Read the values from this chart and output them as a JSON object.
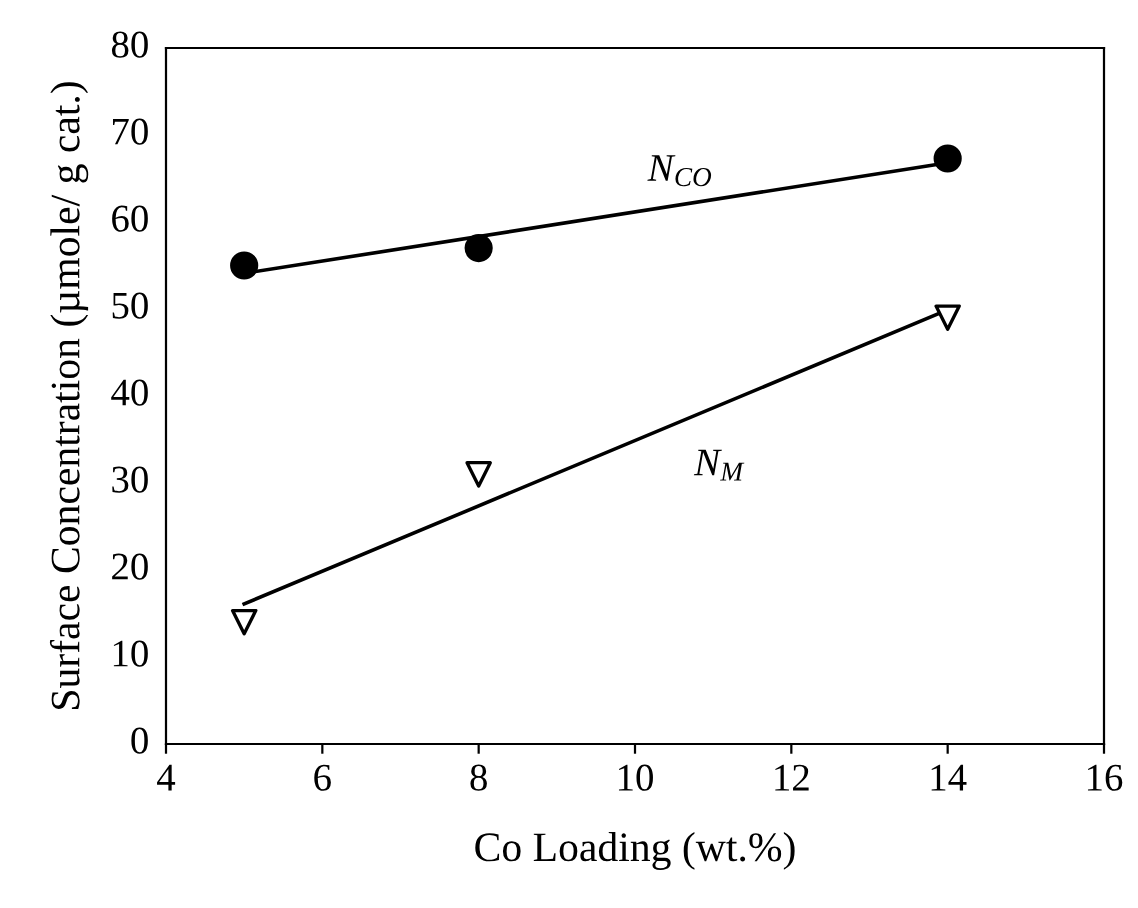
{
  "chart_data": {
    "type": "scatter",
    "xlabel": "Co Loading (wt.%)",
    "ylabel": "Surface Concentration (µmole/ g cat.)",
    "xlim": [
      4,
      16
    ],
    "xticks": [
      4,
      6,
      8,
      10,
      12,
      14,
      16
    ],
    "ylim": [
      0,
      80
    ],
    "yticks": [
      0,
      10,
      20,
      30,
      40,
      50,
      60,
      70,
      80
    ],
    "grid": false,
    "legend": false,
    "series": [
      {
        "marker": "circle",
        "color": "#000000",
        "x": [
          5,
          8,
          14
        ],
        "values": [
          55,
          57,
          67.3
        ]
      },
      {
        "marker": "triangle",
        "color": "#000000",
        "x": [
          5,
          8,
          14
        ],
        "values": [
          14,
          31,
          49
        ]
      },
      {
        "type": "line",
        "name": "N$_{CO}$",
        "color": "#000000",
        "x": [
          5,
          14
        ],
        "values": [
          54.1,
          66.8
        ]
      },
      {
        "type": "line",
        "name": "N$_{M}$",
        "color": "#000000",
        "x": [
          5,
          14
        ],
        "values": [
          16.1,
          49.9
        ]
      }
    ]
  }
}
